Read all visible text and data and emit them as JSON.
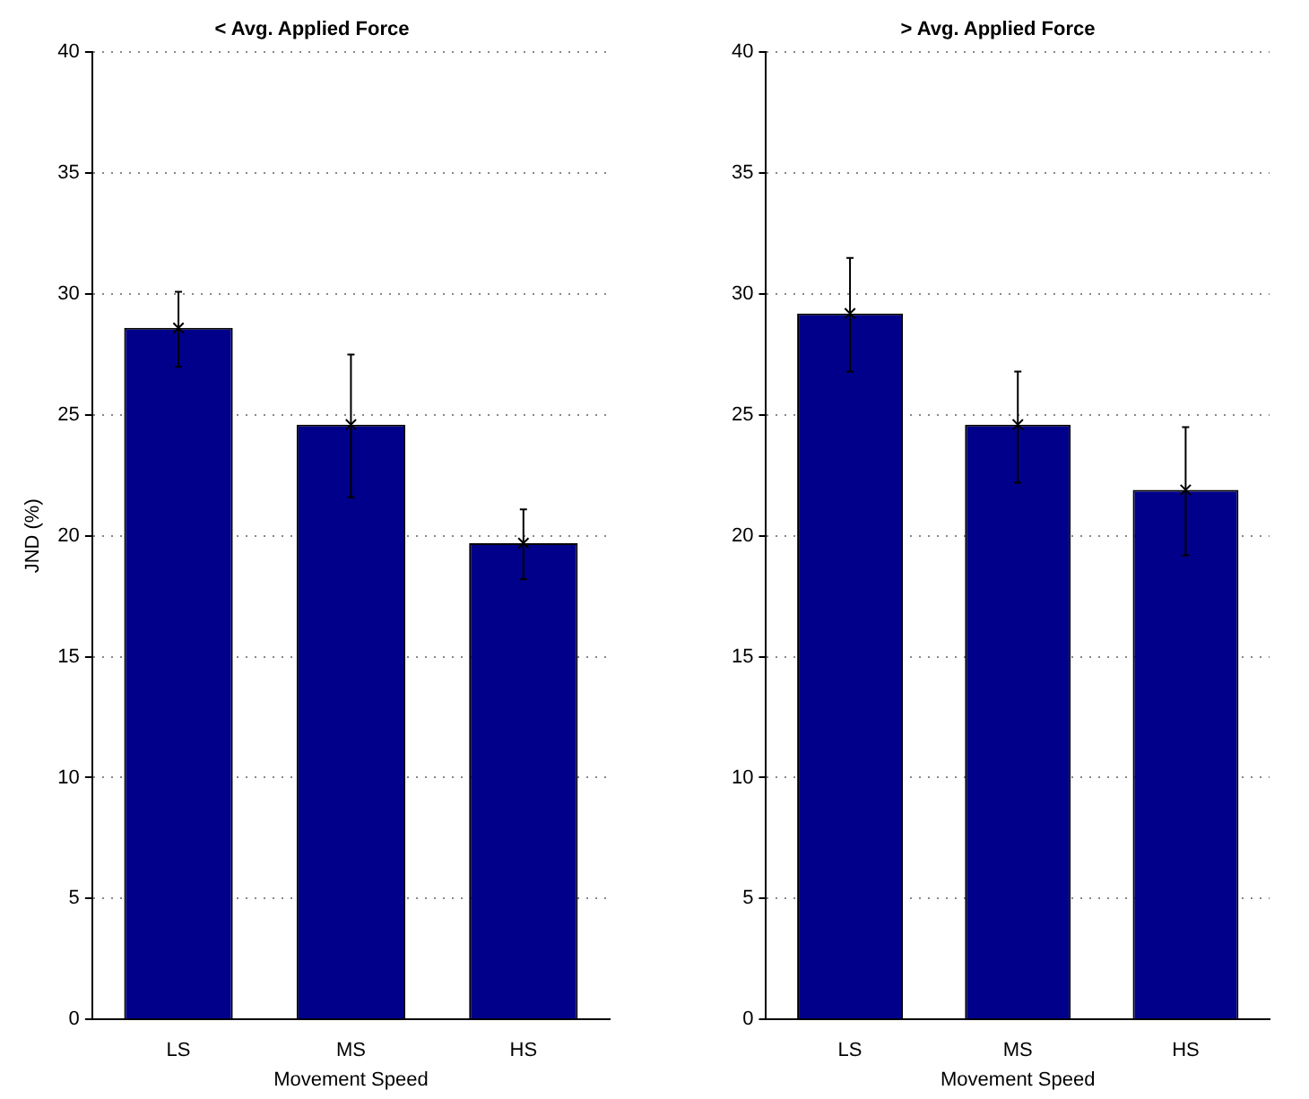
{
  "chart_data": [
    {
      "type": "bar",
      "title": "< Avg. Applied Force",
      "xlabel": "Movement Speed",
      "ylabel": "JND (%)",
      "categories": [
        "LS",
        "MS",
        "HS"
      ],
      "series": [
        {
          "type": "bar",
          "color": "#00008b",
          "values": [
            28.6,
            24.6,
            19.7
          ],
          "errors": [
            [
              27.0,
              30.1
            ],
            [
              21.6,
              27.5
            ],
            [
              18.2,
              21.1
            ]
          ]
        },
        {
          "type": "scatter",
          "color": "#000000",
          "x": [
            "LS",
            "MS",
            "HS"
          ],
          "values": [
            28.6,
            24.6,
            19.7
          ]
        }
      ],
      "marker": "cross",
      "ylim": [
        0,
        40
      ],
      "yticks": [
        0,
        5,
        10,
        15,
        20,
        25,
        30,
        35,
        40
      ],
      "grid": "y",
      "legend": false
    },
    {
      "type": "bar",
      "title": "> Avg. Applied Force",
      "xlabel": "Movement Speed",
      "categories": [
        "LS",
        "MS",
        "HS"
      ],
      "series": [
        {
          "type": "bar",
          "color": "#00008b",
          "values": [
            29.2,
            24.6,
            21.9
          ],
          "errors": [
            [
              26.8,
              31.5
            ],
            [
              22.2,
              26.8
            ],
            [
              19.2,
              24.5
            ]
          ]
        },
        {
          "type": "scatter",
          "color": "#000000",
          "x": [
            "LS",
            "MS",
            "HS"
          ],
          "values": [
            29.2,
            24.6,
            21.9
          ]
        }
      ],
      "marker": "cross",
      "ylim": [
        0,
        40
      ],
      "yticks": [
        0,
        5,
        10,
        15,
        20,
        25,
        30,
        35,
        40
      ],
      "grid": "y",
      "legend": false
    }
  ]
}
